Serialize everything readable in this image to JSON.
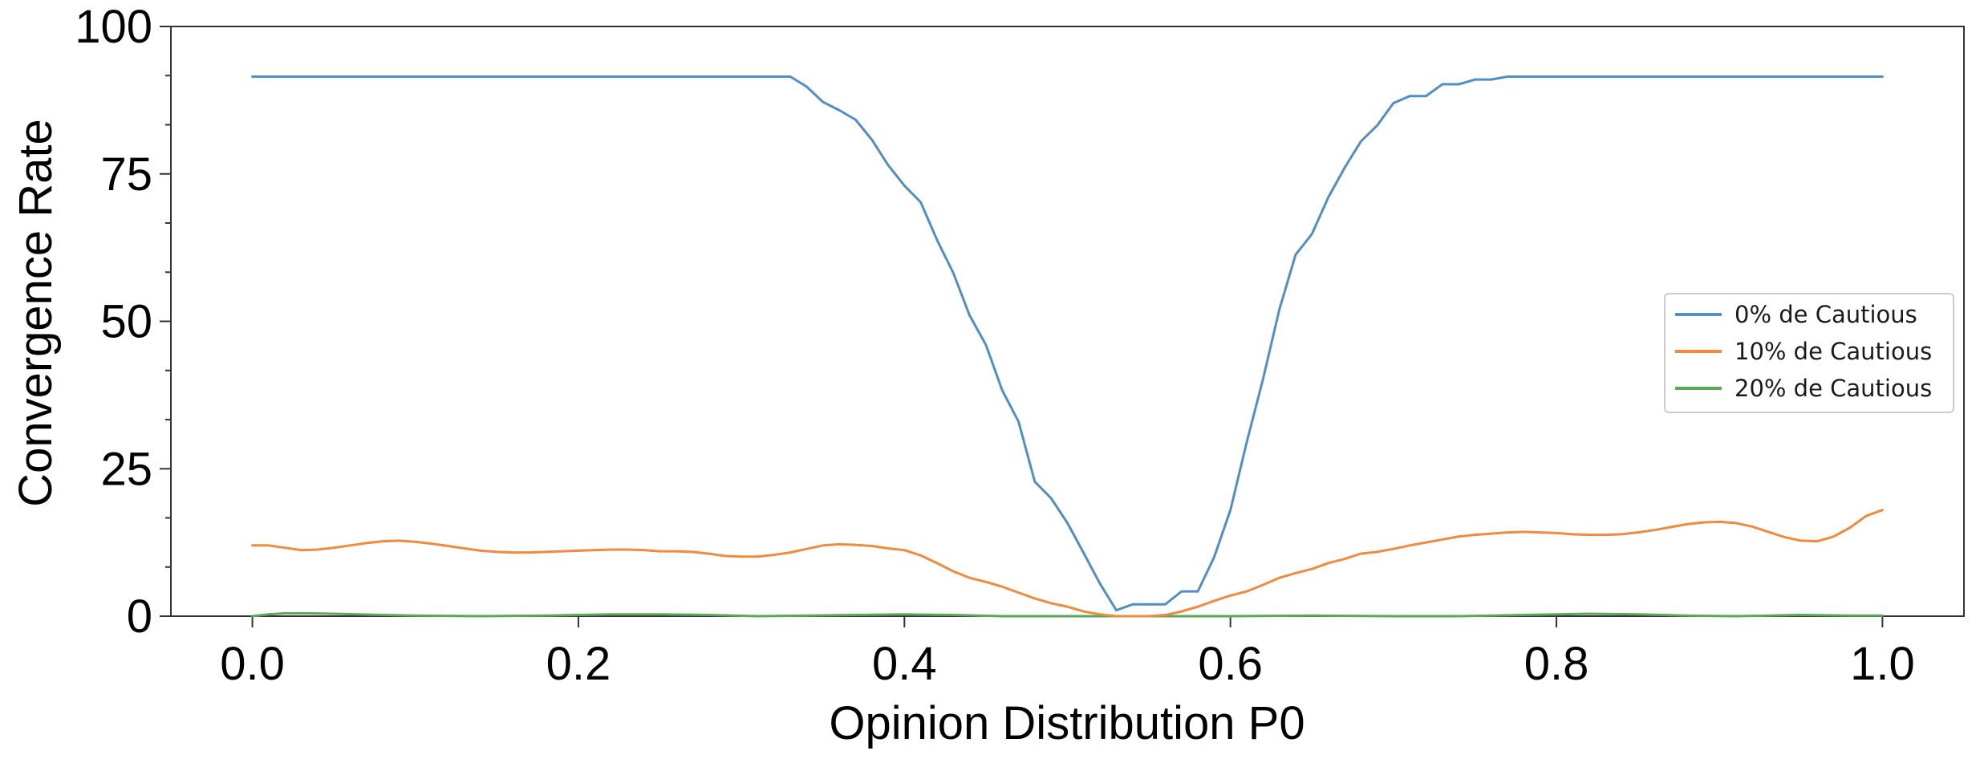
{
  "chart_data": {
    "type": "line",
    "xlabel": "Opinion Distribution P0",
    "ylabel": "Convergence Rate",
    "xlim": [
      -0.05,
      1.05
    ],
    "ylim": [
      0,
      100
    ],
    "x_ticks": [
      0.0,
      0.2,
      0.4,
      0.6,
      0.8,
      1.0
    ],
    "x_tick_labels": [
      "0.0",
      "0.2",
      "0.4",
      "0.6",
      "0.8",
      "1.0"
    ],
    "y_ticks": [
      0,
      25,
      50,
      75,
      100
    ],
    "y_tick_labels": [
      "0",
      "25",
      "50",
      "75",
      "100"
    ],
    "y_minor_ticks": [
      8.33,
      16.67,
      33.33,
      41.67,
      58.33,
      66.67,
      83.33,
      91.67
    ],
    "grid": false,
    "legend_position": "center-right",
    "series": [
      {
        "name": "0% de Cautious",
        "color": "#4f8fc5",
        "points": [
          [
            0.0,
            91.5
          ],
          [
            0.1,
            91.5
          ],
          [
            0.2,
            91.5
          ],
          [
            0.3,
            91.5
          ],
          [
            0.33,
            91.5
          ],
          [
            0.34,
            89.8
          ],
          [
            0.35,
            87.2
          ],
          [
            0.36,
            85.8
          ],
          [
            0.37,
            84.2
          ],
          [
            0.38,
            80.8
          ],
          [
            0.39,
            76.5
          ],
          [
            0.4,
            73.0
          ],
          [
            0.41,
            70.2
          ],
          [
            0.42,
            63.8
          ],
          [
            0.43,
            58.2
          ],
          [
            0.44,
            51.0
          ],
          [
            0.45,
            46.0
          ],
          [
            0.46,
            38.3
          ],
          [
            0.47,
            33.0
          ],
          [
            0.48,
            22.8
          ],
          [
            0.49,
            20.0
          ],
          [
            0.5,
            15.8
          ],
          [
            0.51,
            10.7
          ],
          [
            0.52,
            5.5
          ],
          [
            0.53,
            1.0
          ],
          [
            0.54,
            2.0
          ],
          [
            0.55,
            2.0
          ],
          [
            0.56,
            2.0
          ],
          [
            0.57,
            4.2
          ],
          [
            0.58,
            4.2
          ],
          [
            0.59,
            10.0
          ],
          [
            0.6,
            18.0
          ],
          [
            0.61,
            29.5
          ],
          [
            0.62,
            40.2
          ],
          [
            0.63,
            52.0
          ],
          [
            0.64,
            61.3
          ],
          [
            0.65,
            64.8
          ],
          [
            0.66,
            71.0
          ],
          [
            0.67,
            76.0
          ],
          [
            0.68,
            80.5
          ],
          [
            0.69,
            83.2
          ],
          [
            0.7,
            87.0
          ],
          [
            0.71,
            88.2
          ],
          [
            0.72,
            88.2
          ],
          [
            0.73,
            90.2
          ],
          [
            0.74,
            90.2
          ],
          [
            0.75,
            91.0
          ],
          [
            0.76,
            91.0
          ],
          [
            0.77,
            91.5
          ],
          [
            0.78,
            91.5
          ],
          [
            0.9,
            91.5
          ],
          [
            1.0,
            91.5
          ]
        ]
      },
      {
        "name": "10% de Cautious",
        "color": "#f08a3c",
        "points": [
          [
            0.0,
            12.0
          ],
          [
            0.01,
            12.0
          ],
          [
            0.02,
            11.6
          ],
          [
            0.03,
            11.2
          ],
          [
            0.04,
            11.3
          ],
          [
            0.05,
            11.6
          ],
          [
            0.06,
            12.0
          ],
          [
            0.07,
            12.4
          ],
          [
            0.08,
            12.7
          ],
          [
            0.09,
            12.8
          ],
          [
            0.1,
            12.6
          ],
          [
            0.11,
            12.3
          ],
          [
            0.12,
            11.9
          ],
          [
            0.13,
            11.5
          ],
          [
            0.14,
            11.1
          ],
          [
            0.15,
            10.9
          ],
          [
            0.16,
            10.8
          ],
          [
            0.17,
            10.8
          ],
          [
            0.18,
            10.9
          ],
          [
            0.19,
            11.0
          ],
          [
            0.2,
            11.1
          ],
          [
            0.21,
            11.2
          ],
          [
            0.22,
            11.3
          ],
          [
            0.23,
            11.3
          ],
          [
            0.24,
            11.2
          ],
          [
            0.25,
            11.0
          ],
          [
            0.26,
            11.0
          ],
          [
            0.27,
            10.9
          ],
          [
            0.28,
            10.6
          ],
          [
            0.29,
            10.2
          ],
          [
            0.3,
            10.1
          ],
          [
            0.31,
            10.1
          ],
          [
            0.32,
            10.4
          ],
          [
            0.33,
            10.8
          ],
          [
            0.34,
            11.4
          ],
          [
            0.35,
            12.0
          ],
          [
            0.36,
            12.2
          ],
          [
            0.37,
            12.1
          ],
          [
            0.38,
            11.9
          ],
          [
            0.39,
            11.5
          ],
          [
            0.4,
            11.2
          ],
          [
            0.41,
            10.3
          ],
          [
            0.42,
            9.0
          ],
          [
            0.43,
            7.6
          ],
          [
            0.44,
            6.5
          ],
          [
            0.45,
            5.8
          ],
          [
            0.46,
            5.0
          ],
          [
            0.47,
            4.0
          ],
          [
            0.48,
            3.0
          ],
          [
            0.49,
            2.2
          ],
          [
            0.5,
            1.6
          ],
          [
            0.51,
            0.8
          ],
          [
            0.52,
            0.3
          ],
          [
            0.53,
            0.0
          ],
          [
            0.54,
            0.0
          ],
          [
            0.55,
            0.0
          ],
          [
            0.56,
            0.2
          ],
          [
            0.57,
            0.8
          ],
          [
            0.58,
            1.6
          ],
          [
            0.59,
            2.6
          ],
          [
            0.6,
            3.5
          ],
          [
            0.61,
            4.2
          ],
          [
            0.62,
            5.3
          ],
          [
            0.63,
            6.5
          ],
          [
            0.64,
            7.3
          ],
          [
            0.65,
            8.0
          ],
          [
            0.66,
            9.0
          ],
          [
            0.67,
            9.7
          ],
          [
            0.68,
            10.6
          ],
          [
            0.69,
            10.9
          ],
          [
            0.7,
            11.4
          ],
          [
            0.71,
            12.0
          ],
          [
            0.72,
            12.5
          ],
          [
            0.73,
            13.0
          ],
          [
            0.74,
            13.5
          ],
          [
            0.75,
            13.8
          ],
          [
            0.76,
            14.0
          ],
          [
            0.77,
            14.2
          ],
          [
            0.78,
            14.3
          ],
          [
            0.79,
            14.2
          ],
          [
            0.8,
            14.1
          ],
          [
            0.81,
            13.9
          ],
          [
            0.82,
            13.8
          ],
          [
            0.83,
            13.8
          ],
          [
            0.84,
            13.9
          ],
          [
            0.85,
            14.2
          ],
          [
            0.86,
            14.6
          ],
          [
            0.87,
            15.1
          ],
          [
            0.88,
            15.6
          ],
          [
            0.89,
            15.9
          ],
          [
            0.9,
            16.0
          ],
          [
            0.91,
            15.8
          ],
          [
            0.92,
            15.2
          ],
          [
            0.93,
            14.3
          ],
          [
            0.94,
            13.4
          ],
          [
            0.95,
            12.8
          ],
          [
            0.96,
            12.7
          ],
          [
            0.97,
            13.5
          ],
          [
            0.98,
            15.0
          ],
          [
            0.99,
            17.0
          ],
          [
            1.0,
            18.0
          ]
        ]
      },
      {
        "name": "20% de Cautious",
        "color": "#5aa85a",
        "points": [
          [
            0.0,
            0.0
          ],
          [
            0.01,
            0.3
          ],
          [
            0.02,
            0.5
          ],
          [
            0.03,
            0.5
          ],
          [
            0.05,
            0.4
          ],
          [
            0.08,
            0.2
          ],
          [
            0.1,
            0.1
          ],
          [
            0.14,
            0.0
          ],
          [
            0.18,
            0.1
          ],
          [
            0.22,
            0.3
          ],
          [
            0.25,
            0.3
          ],
          [
            0.28,
            0.2
          ],
          [
            0.31,
            0.0
          ],
          [
            0.34,
            0.1
          ],
          [
            0.37,
            0.2
          ],
          [
            0.4,
            0.3
          ],
          [
            0.43,
            0.2
          ],
          [
            0.46,
            0.0
          ],
          [
            0.5,
            0.0
          ],
          [
            0.55,
            0.0
          ],
          [
            0.6,
            0.0
          ],
          [
            0.65,
            0.1
          ],
          [
            0.7,
            0.0
          ],
          [
            0.74,
            0.0
          ],
          [
            0.78,
            0.2
          ],
          [
            0.82,
            0.4
          ],
          [
            0.85,
            0.3
          ],
          [
            0.88,
            0.1
          ],
          [
            0.91,
            0.0
          ],
          [
            0.95,
            0.2
          ],
          [
            0.98,
            0.1
          ],
          [
            1.0,
            0.1
          ]
        ]
      }
    ]
  }
}
